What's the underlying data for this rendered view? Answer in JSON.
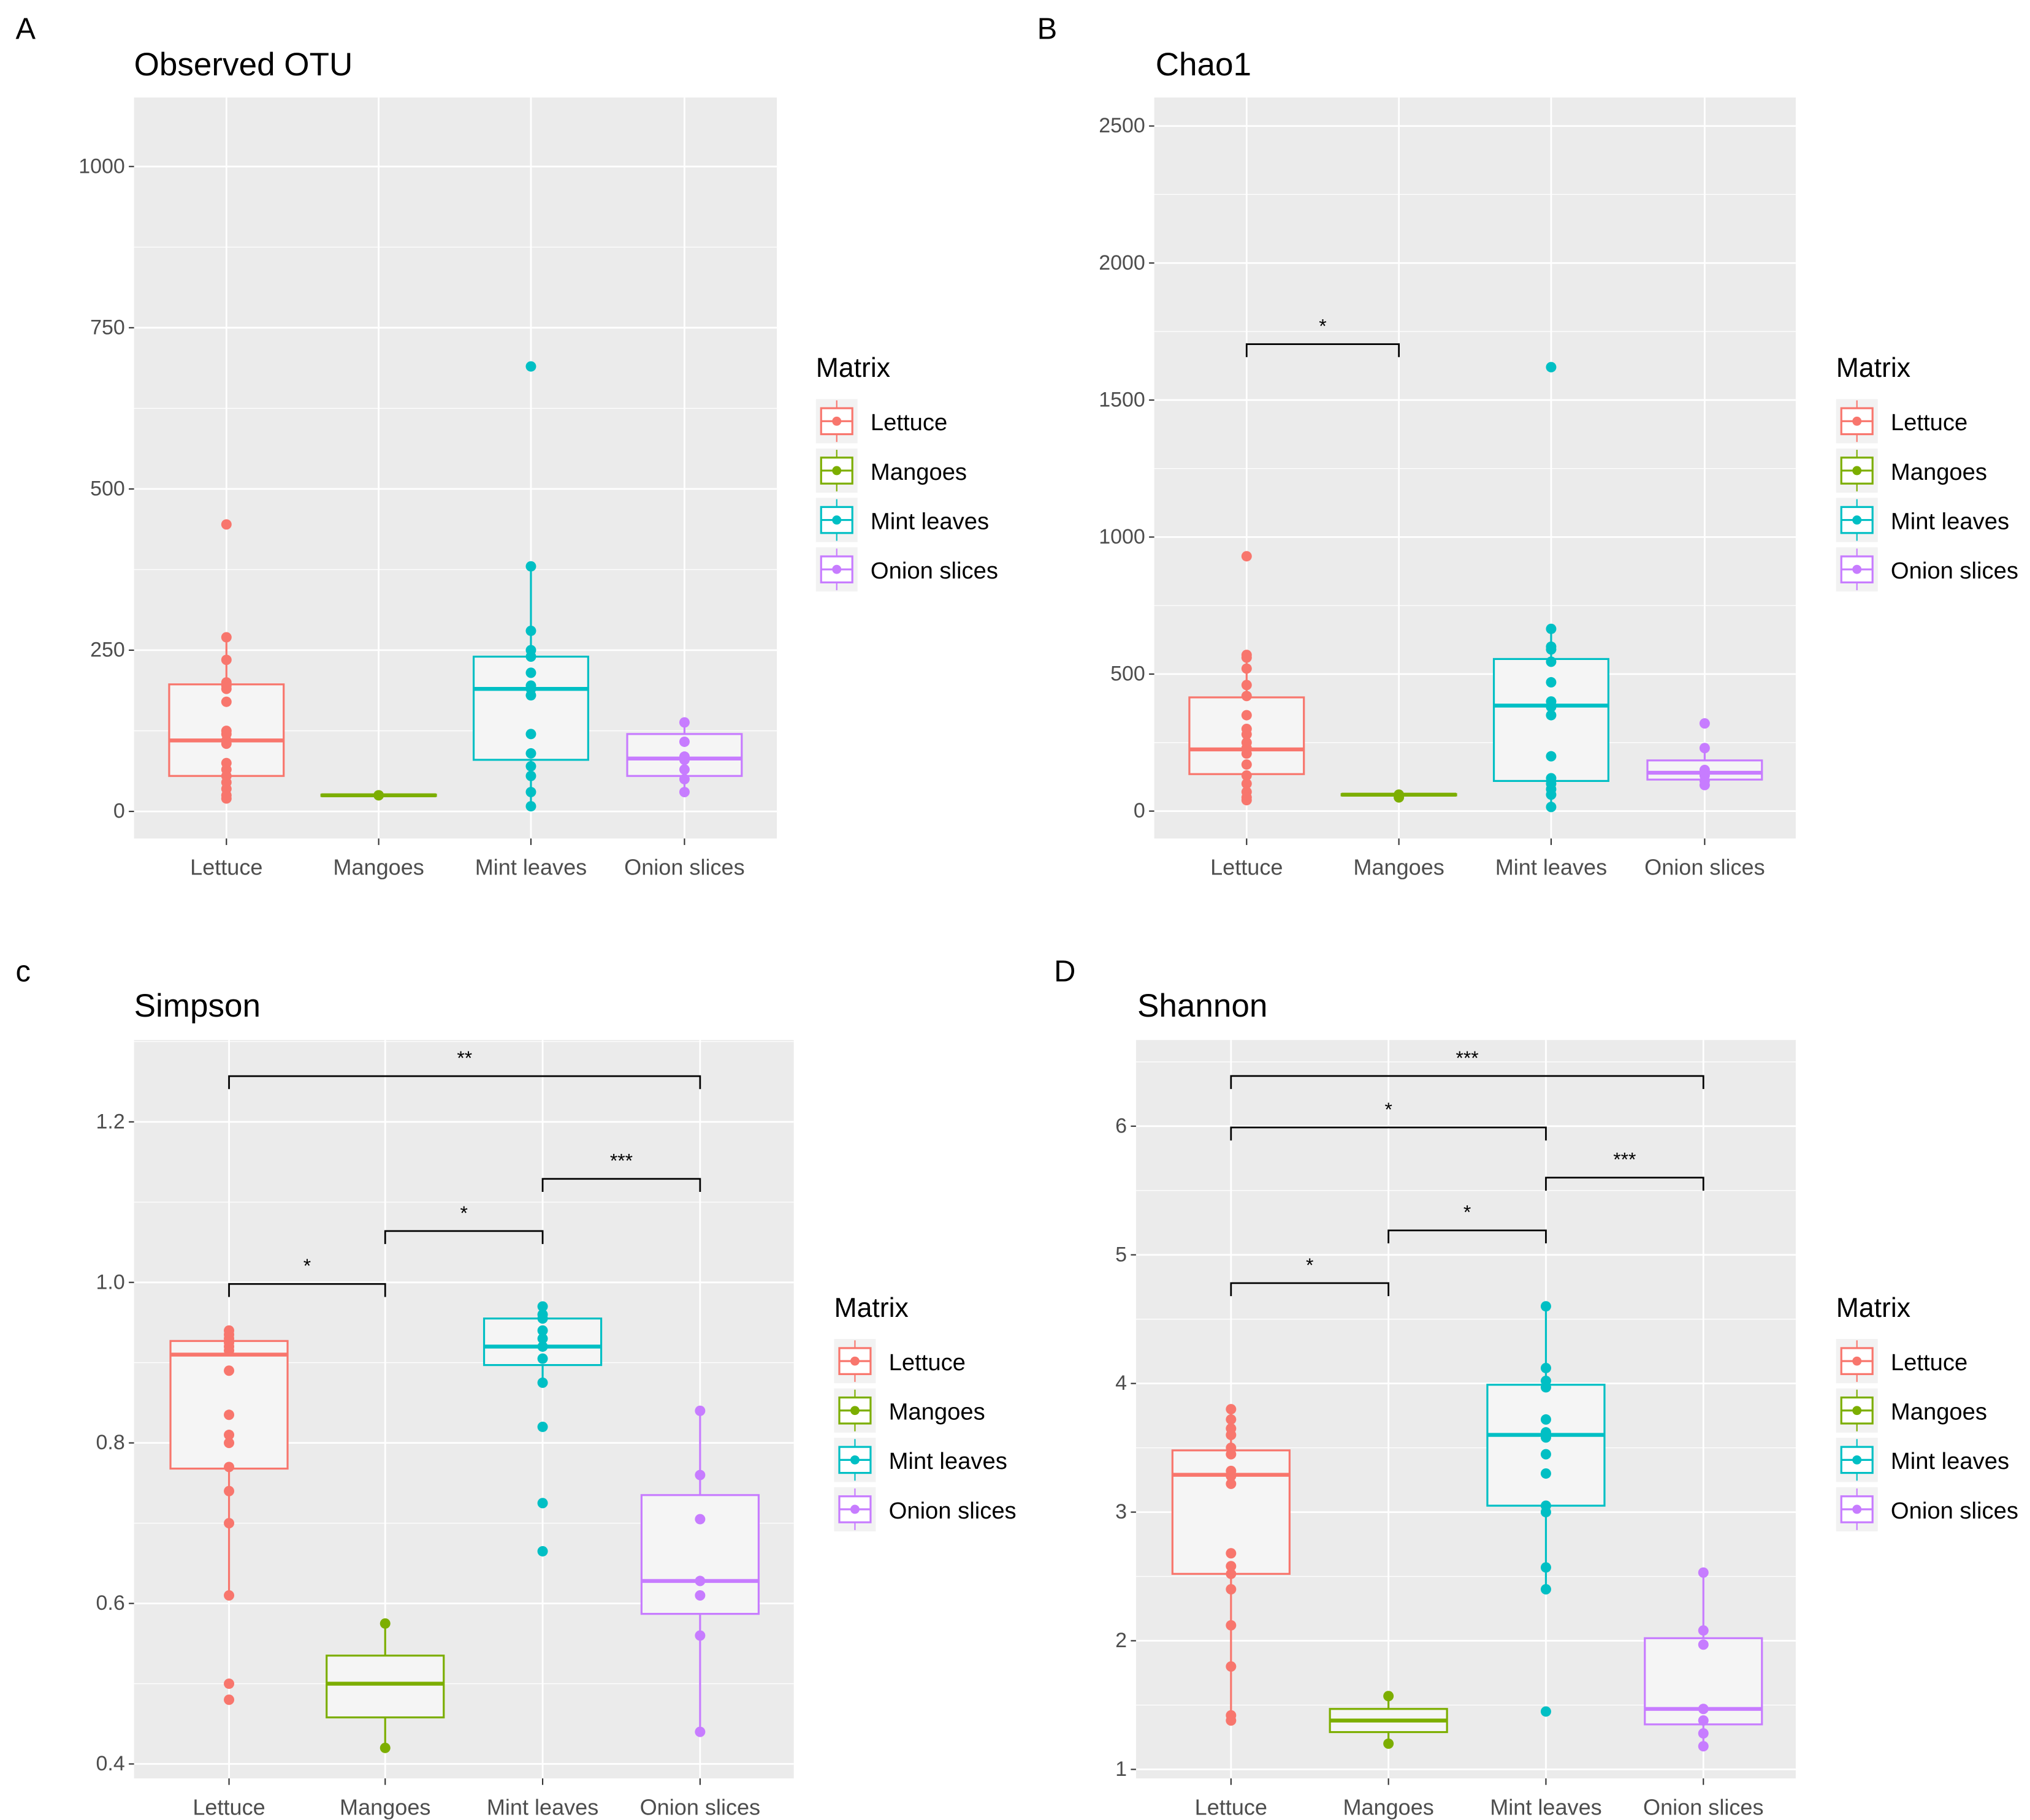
{
  "colors": {
    "Lettuce": "#F8766D",
    "Mangoes": "#7CAE00",
    "Mint leaves": "#00BFC4",
    "Onion slices": "#C77CFF",
    "panel_bg": "#EBEBEB",
    "grid": "#FFFFFF",
    "box_fill": "#F5F5F5"
  },
  "legend": {
    "title": "Matrix",
    "items": [
      "Lettuce",
      "Mangoes",
      "Mint leaves",
      "Onion slices"
    ]
  },
  "chart_data": [
    {
      "panel_label": "A",
      "title": "Observed OTU",
      "type": "boxplot",
      "grid": true,
      "legend_placement": "right",
      "categories": [
        "Lettuce",
        "Mangoes",
        "Mint leaves",
        "Onion slices"
      ],
      "ylim": [
        -42,
        1107
      ],
      "yticks": [
        0,
        250,
        500,
        750,
        1000
      ],
      "boxes": [
        {
          "q1": 55,
          "median": 110,
          "q3": 197,
          "whisker_low": 20,
          "whisker_high": 270,
          "points": [
            445,
            270,
            235,
            200,
            195,
            190,
            170,
            125,
            120,
            110,
            105,
            75,
            65,
            55,
            45,
            35,
            25,
            20
          ]
        },
        {
          "q1": 24,
          "median": 25,
          "q3": 26,
          "whisker_low": 24,
          "whisker_high": 26,
          "points": [
            25,
            25
          ]
        },
        {
          "q1": 80,
          "median": 190,
          "q3": 240,
          "whisker_low": 8,
          "whisker_high": 380,
          "points": [
            690,
            380,
            280,
            250,
            240,
            215,
            195,
            190,
            180,
            120,
            90,
            70,
            55,
            30,
            8
          ]
        },
        {
          "q1": 55,
          "median": 82,
          "q3": 120,
          "whisker_low": 30,
          "whisker_high": 138,
          "points": [
            138,
            108,
            85,
            80,
            65,
            50,
            30
          ]
        }
      ],
      "significance": []
    },
    {
      "panel_label": "B",
      "title": "Chao1",
      "type": "boxplot",
      "grid": true,
      "legend_placement": "right",
      "categories": [
        "Lettuce",
        "Mangoes",
        "Mint leaves",
        "Onion slices"
      ],
      "ylim": [
        -100,
        2604
      ],
      "yticks": [
        0,
        500,
        1000,
        1500,
        2000,
        2500
      ],
      "boxes": [
        {
          "q1": 135,
          "median": 225,
          "q3": 415,
          "whisker_low": 40,
          "whisker_high": 570,
          "points": [
            930,
            570,
            560,
            520,
            460,
            420,
            350,
            300,
            280,
            250,
            230,
            210,
            170,
            130,
            100,
            70,
            50,
            40
          ]
        },
        {
          "q1": 58,
          "median": 60,
          "q3": 62,
          "whisker_low": 50,
          "whisker_high": 65,
          "points": [
            60,
            50
          ]
        },
        {
          "q1": 110,
          "median": 385,
          "q3": 555,
          "whisker_low": 15,
          "whisker_high": 665,
          "points": [
            1620,
            665,
            600,
            590,
            545,
            470,
            400,
            380,
            350,
            200,
            120,
            100,
            80,
            60,
            15
          ]
        },
        {
          "q1": 115,
          "median": 140,
          "q3": 185,
          "whisker_low": 90,
          "whisker_high": 230,
          "points": [
            320,
            230,
            150,
            140,
            130,
            110,
            95
          ]
        }
      ],
      "significance": [
        {
          "from": "Lettuce",
          "to": "Mangoes",
          "y": 1704,
          "label": "*"
        }
      ]
    },
    {
      "panel_label": "c",
      "title": "Simpson",
      "type": "boxplot",
      "grid": true,
      "legend_placement": "right",
      "categories": [
        "Lettuce",
        "Mangoes",
        "Mint leaves",
        "Onion slices"
      ],
      "ylim": [
        0.382,
        1.302
      ],
      "yticks": [
        0.4,
        0.6,
        0.8,
        1.0,
        1.2
      ],
      "boxes": [
        {
          "q1": 0.768,
          "median": 0.91,
          "q3": 0.927,
          "whisker_low": 0.61,
          "whisker_high": 0.94,
          "points": [
            0.94,
            0.935,
            0.93,
            0.925,
            0.92,
            0.915,
            0.89,
            0.835,
            0.81,
            0.8,
            0.77,
            0.74,
            0.7,
            0.61,
            0.5,
            0.48
          ]
        },
        {
          "q1": 0.458,
          "median": 0.5,
          "q3": 0.535,
          "whisker_low": 0.42,
          "whisker_high": 0.575,
          "points": [
            0.575,
            0.42
          ]
        },
        {
          "q1": 0.897,
          "median": 0.92,
          "q3": 0.955,
          "whisker_low": 0.875,
          "whisker_high": 0.97,
          "points": [
            0.97,
            0.96,
            0.955,
            0.94,
            0.93,
            0.92,
            0.905,
            0.875,
            0.82,
            0.725,
            0.665
          ]
        },
        {
          "q1": 0.587,
          "median": 0.628,
          "q3": 0.735,
          "whisker_low": 0.44,
          "whisker_high": 0.84,
          "points": [
            0.84,
            0.76,
            0.705,
            0.628,
            0.61,
            0.56,
            0.44
          ]
        }
      ],
      "significance": [
        {
          "from": "Lettuce",
          "to": "Onion slices",
          "y": 1.257,
          "label": "**"
        },
        {
          "from": "Mint leaves",
          "to": "Onion slices",
          "y": 1.129,
          "label": "***"
        },
        {
          "from": "Mangoes",
          "to": "Mint leaves",
          "y": 1.064,
          "label": "*"
        },
        {
          "from": "Lettuce",
          "to": "Mangoes",
          "y": 0.998,
          "label": "*"
        }
      ]
    },
    {
      "panel_label": "D",
      "title": "Shannon",
      "type": "boxplot",
      "grid": true,
      "legend_placement": "right",
      "categories": [
        "Lettuce",
        "Mangoes",
        "Mint leaves",
        "Onion slices"
      ],
      "ylim": [
        0.93,
        6.67
      ],
      "yticks": [
        1,
        2,
        3,
        4,
        5,
        6
      ],
      "boxes": [
        {
          "q1": 2.52,
          "median": 3.29,
          "q3": 3.48,
          "whisker_low": 1.38,
          "whisker_high": 3.8,
          "points": [
            3.8,
            3.72,
            3.65,
            3.6,
            3.5,
            3.45,
            3.32,
            3.28,
            3.22,
            2.68,
            2.58,
            2.52,
            2.4,
            2.12,
            1.8,
            1.42,
            1.38
          ]
        },
        {
          "q1": 1.29,
          "median": 1.38,
          "q3": 1.47,
          "whisker_low": 1.2,
          "whisker_high": 1.57,
          "points": [
            1.57,
            1.2
          ]
        },
        {
          "q1": 3.05,
          "median": 3.6,
          "q3": 3.99,
          "whisker_low": 2.4,
          "whisker_high": 4.6,
          "points": [
            4.6,
            4.12,
            4.02,
            3.97,
            3.72,
            3.62,
            3.58,
            3.45,
            3.3,
            3.05,
            3.0,
            2.57,
            2.4,
            1.45
          ]
        },
        {
          "q1": 1.35,
          "median": 1.47,
          "q3": 2.02,
          "whisker_low": 1.18,
          "whisker_high": 2.53,
          "points": [
            2.53,
            2.08,
            1.97,
            1.47,
            1.38,
            1.28,
            1.18
          ]
        }
      ],
      "significance": [
        {
          "from": "Lettuce",
          "to": "Onion slices",
          "y": 6.39,
          "label": "***"
        },
        {
          "from": "Lettuce",
          "to": "Mint leaves",
          "y": 5.99,
          "label": "*"
        },
        {
          "from": "Mint leaves",
          "to": "Onion slices",
          "y": 5.6,
          "label": "***"
        },
        {
          "from": "Mangoes",
          "to": "Mint leaves",
          "y": 5.19,
          "label": "*"
        },
        {
          "from": "Lettuce",
          "to": "Mangoes",
          "y": 4.78,
          "label": "*"
        }
      ]
    }
  ]
}
